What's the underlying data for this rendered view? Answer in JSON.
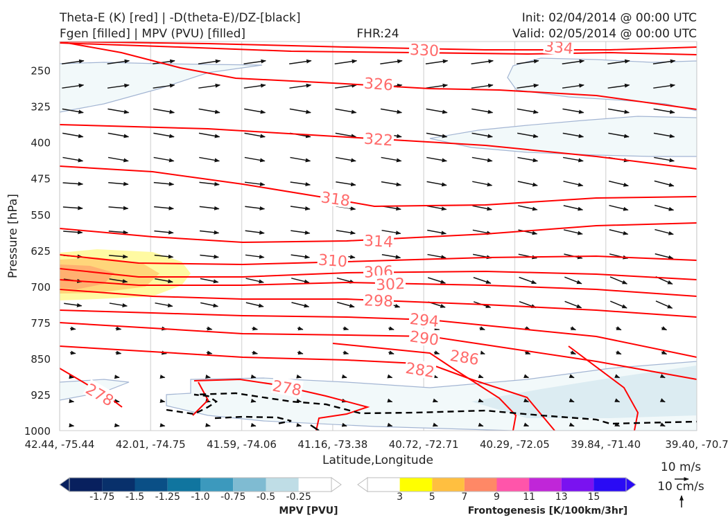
{
  "header": {
    "title_left_1": "Theta-E (K) [red] | -D(theta-E)/DZ-[black]",
    "title_left_2": "Fgen [filled] | MPV (PVU) [filled]",
    "title_center": "FHR:24",
    "title_right_1": "Init: 02/04/2014 @ 00:00 UTC",
    "title_right_2": "Valid: 02/05/2014 @ 00:00 UTC"
  },
  "chart_data": {
    "type": "cross-section",
    "xlabel": "Latitude,Longitude",
    "ylabel": "Pressure [hPa]",
    "x_ticks": [
      "42.44, -75.44",
      "42.01, -74.75",
      "41.59, -74.06",
      "41.16, -73.38",
      "40.72, -72.71",
      "40.29, -72.05",
      "39.84, -71.40",
      "39.40, -70.7"
    ],
    "y_ticks": [
      250,
      325,
      400,
      475,
      550,
      625,
      700,
      775,
      850,
      925,
      1000
    ],
    "ylim": [
      1000,
      190
    ],
    "y_scale": "linear-inverted",
    "theta_e_contours": [
      {
        "value": 334,
        "color": "#ff0000"
      },
      {
        "value": 330,
        "color": "#ff0000"
      },
      {
        "value": 326,
        "color": "#ff0000"
      },
      {
        "value": 322,
        "color": "#ff0000"
      },
      {
        "value": 318,
        "color": "#ff0000"
      },
      {
        "value": 314,
        "color": "#ff0000"
      },
      {
        "value": 310,
        "color": "#ff0000"
      },
      {
        "value": 306,
        "color": "#ff0000"
      },
      {
        "value": 302,
        "color": "#ff0000"
      },
      {
        "value": 298,
        "color": "#ff0000"
      },
      {
        "value": 294,
        "color": "#ff0000"
      },
      {
        "value": 290,
        "color": "#ff0000"
      },
      {
        "value": 286,
        "color": "#ff0000"
      },
      {
        "value": 282,
        "color": "#ff0000"
      },
      {
        "value": 278,
        "color": "#ff0000"
      }
    ],
    "contour_labels": [
      "334",
      "330",
      "326",
      "322",
      "318",
      "314",
      "310",
      "306",
      "302",
      "298",
      "294",
      "290",
      "286",
      "282",
      "278",
      "278"
    ],
    "mpv_colorbar": {
      "label": "MPV [PVU]",
      "ticks": [
        "-1.75",
        "-1.5",
        "-1.25",
        "-1.0",
        "-0.75",
        "-0.5",
        "-0.25"
      ],
      "colors": [
        "#08205e",
        "#08306b",
        "#0a4f86",
        "#10759f",
        "#3c99bd",
        "#7fbbd2",
        "#bfdde6",
        "#ffffff"
      ]
    },
    "fgen_colorbar": {
      "label": "Frontogenesis [K/100km/3hr]",
      "ticks": [
        "3",
        "5",
        "7",
        "9",
        "11",
        "13",
        "15"
      ],
      "colors": [
        "#ffffff",
        "#ffff00",
        "#ffbf40",
        "#ff8866",
        "#ff55aa",
        "#c026d8",
        "#7a12f0",
        "#2a0bf5"
      ]
    },
    "wind_reference": {
      "label_x": "10 m/s",
      "label_y": "10 cm/s"
    }
  }
}
